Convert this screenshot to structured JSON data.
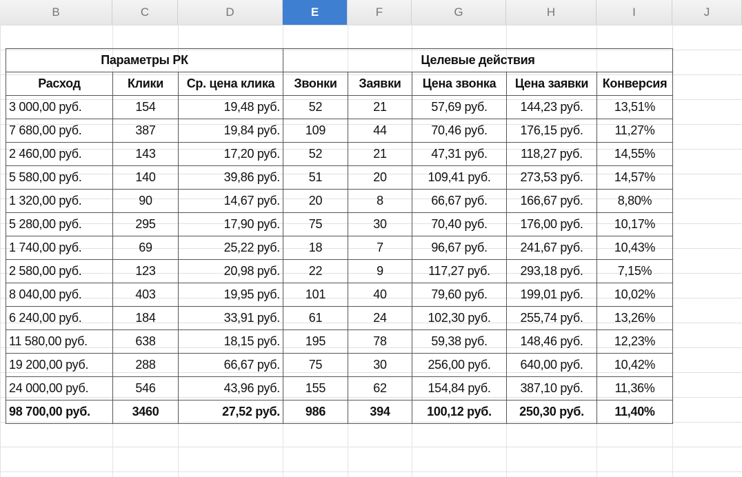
{
  "columns": [
    "B",
    "C",
    "D",
    "E",
    "F",
    "G",
    "H",
    "I",
    "J"
  ],
  "selected_column": "E",
  "table": {
    "group_headers": [
      "Параметры РК",
      "Целевые действия"
    ],
    "headers": [
      "Расход",
      "Клики",
      "Ср. цена клика",
      "Звонки",
      "Заявки",
      "Цена звонка",
      "Цена заявки",
      "Конверсия"
    ],
    "rows": [
      [
        "3 000,00 руб.",
        "154",
        "19,48 руб.",
        "52",
        "21",
        "57,69 руб.",
        "144,23 руб.",
        "13,51%"
      ],
      [
        "7 680,00 руб.",
        "387",
        "19,84 руб.",
        "109",
        "44",
        "70,46 руб.",
        "176,15 руб.",
        "11,27%"
      ],
      [
        "2 460,00 руб.",
        "143",
        "17,20 руб.",
        "52",
        "21",
        "47,31 руб.",
        "118,27 руб.",
        "14,55%"
      ],
      [
        "5 580,00 руб.",
        "140",
        "39,86 руб.",
        "51",
        "20",
        "109,41 руб.",
        "273,53 руб.",
        "14,57%"
      ],
      [
        "1 320,00 руб.",
        "90",
        "14,67 руб.",
        "20",
        "8",
        "66,67 руб.",
        "166,67 руб.",
        "8,80%"
      ],
      [
        "5 280,00 руб.",
        "295",
        "17,90 руб.",
        "75",
        "30",
        "70,40 руб.",
        "176,00 руб.",
        "10,17%"
      ],
      [
        "1 740,00 руб.",
        "69",
        "25,22 руб.",
        "18",
        "7",
        "96,67 руб.",
        "241,67 руб.",
        "10,43%"
      ],
      [
        "2 580,00 руб.",
        "123",
        "20,98 руб.",
        "22",
        "9",
        "117,27 руб.",
        "293,18 руб.",
        "7,15%"
      ],
      [
        "8 040,00 руб.",
        "403",
        "19,95 руб.",
        "101",
        "40",
        "79,60 руб.",
        "199,01 руб.",
        "10,02%"
      ],
      [
        "6 240,00 руб.",
        "184",
        "33,91 руб.",
        "61",
        "24",
        "102,30 руб.",
        "255,74 руб.",
        "13,26%"
      ],
      [
        "11 580,00 руб.",
        "638",
        "18,15 руб.",
        "195",
        "78",
        "59,38 руб.",
        "148,46 руб.",
        "12,23%"
      ],
      [
        "19 200,00 руб.",
        "288",
        "66,67 руб.",
        "75",
        "30",
        "256,00 руб.",
        "640,00 руб.",
        "10,42%"
      ],
      [
        "24 000,00 руб.",
        "546",
        "43,96 руб.",
        "155",
        "62",
        "154,84 руб.",
        "387,10 руб.",
        "11,36%"
      ]
    ],
    "total": [
      "98 700,00 руб.",
      "3460",
      "27,52 руб.",
      "986",
      "394",
      "100,12 руб.",
      "250,30 руб.",
      "11,40%"
    ]
  }
}
